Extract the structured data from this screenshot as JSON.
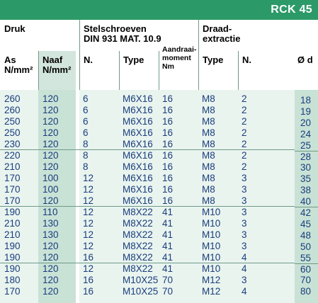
{
  "badge": "RCK 45",
  "groups": {
    "druk": "Druk",
    "stelschroeven_line1": "Stelschroeven",
    "stelschroeven_line2": "DIN 931 MAT. 10.9",
    "draad_line1": "Draad-",
    "draad_line2": "extractie"
  },
  "columns": {
    "as_1": "As",
    "as_2": "N/mm²",
    "naaf_1": "Naaf",
    "naaf_2": "N/mm²",
    "n": "N.",
    "type": "Type",
    "aandraai_1": "Aandraai-",
    "aandraai_2": "moment",
    "aandraai_3": "Nm",
    "type2": "Type",
    "n2": "N.",
    "diameter": "Ø d"
  },
  "rows": [
    {
      "as": "260",
      "naaf": "120",
      "n": "6",
      "type": "M6X16",
      "moment": "16",
      "type2": "M8",
      "n2": "2"
    },
    {
      "as": "260",
      "naaf": "120",
      "n": "6",
      "type": "M6X16",
      "moment": "16",
      "type2": "M8",
      "n2": "2"
    },
    {
      "as": "250",
      "naaf": "120",
      "n": "6",
      "type": "M6X16",
      "moment": "16",
      "type2": "M8",
      "n2": "2"
    },
    {
      "as": "250",
      "naaf": "120",
      "n": "6",
      "type": "M6X16",
      "moment": "16",
      "type2": "M8",
      "n2": "2"
    },
    {
      "as": "230",
      "naaf": "120",
      "n": "8",
      "type": "M6X16",
      "moment": "16",
      "type2": "M8",
      "n2": "2"
    },
    {
      "as": "220",
      "naaf": "120",
      "n": "8",
      "type": "M6X16",
      "moment": "16",
      "type2": "M8",
      "n2": "2"
    },
    {
      "as": "210",
      "naaf": "120",
      "n": "8",
      "type": "M6X16",
      "moment": "16",
      "type2": "M8",
      "n2": "2"
    },
    {
      "as": "170",
      "naaf": "100",
      "n": "12",
      "type": "M6X16",
      "moment": "16",
      "type2": "M8",
      "n2": "3"
    },
    {
      "as": "170",
      "naaf": "100",
      "n": "12",
      "type": "M6X16",
      "moment": "16",
      "type2": "M8",
      "n2": "3"
    },
    {
      "as": "170",
      "naaf": "120",
      "n": "12",
      "type": "M6X16",
      "moment": "16",
      "type2": "M8",
      "n2": "3"
    },
    {
      "as": "190",
      "naaf": "110",
      "n": "12",
      "type": "M8X22",
      "moment": "41",
      "type2": "M10",
      "n2": "3"
    },
    {
      "as": "210",
      "naaf": "130",
      "n": "12",
      "type": "M8X22",
      "moment": "41",
      "type2": "M10",
      "n2": "3"
    },
    {
      "as": "210",
      "naaf": "130",
      "n": "12",
      "type": "M8X22",
      "moment": "41",
      "type2": "M10",
      "n2": "3"
    },
    {
      "as": "190",
      "naaf": "120",
      "n": "12",
      "type": "M8X22",
      "moment": "41",
      "type2": "M10",
      "n2": "3"
    },
    {
      "as": "190",
      "naaf": "120",
      "n": "16",
      "type": "M8X22",
      "moment": "41",
      "type2": "M10",
      "n2": "4"
    },
    {
      "as": "190",
      "naaf": "120",
      "n": "12",
      "type": "M8X22",
      "moment": "41",
      "type2": "M10",
      "n2": "4"
    },
    {
      "as": "180",
      "naaf": "120",
      "n": "16",
      "type": "M10X25",
      "moment": "70",
      "type2": "M12",
      "n2": "3"
    },
    {
      "as": "170",
      "naaf": "120",
      "n": "16",
      "type": "M10X25",
      "moment": "70",
      "type2": "M12",
      "n2": "4"
    }
  ],
  "diameters": [
    "18",
    "19",
    "20",
    "24",
    "25",
    "28",
    "30",
    "35",
    "38",
    "40",
    "42",
    "45",
    "48",
    "50",
    "55",
    "60",
    "70",
    "80"
  ]
}
